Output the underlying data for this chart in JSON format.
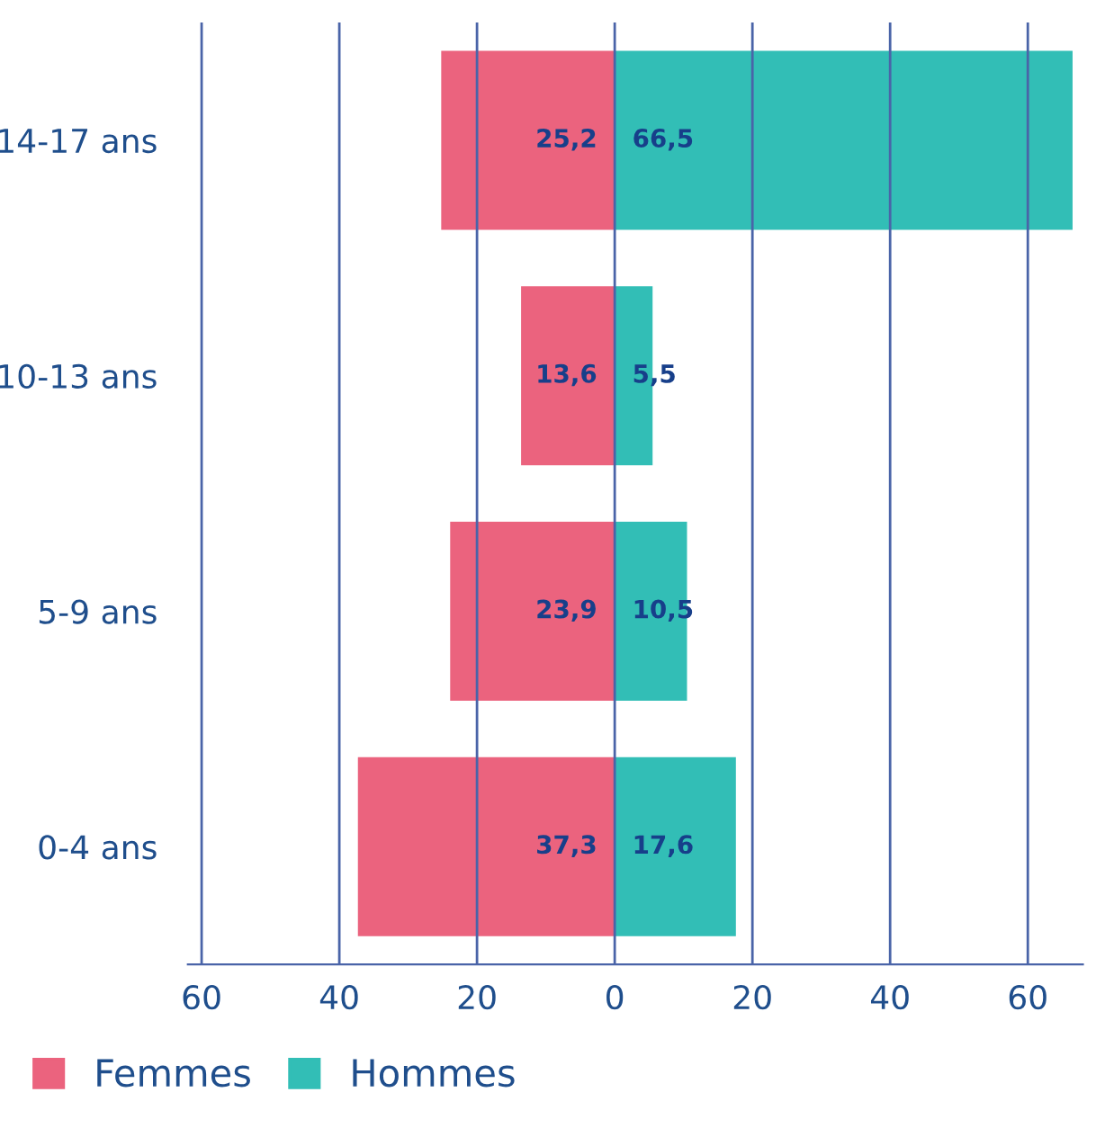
{
  "chart_data": {
    "type": "bar",
    "orientation": "horizontal",
    "categories": [
      "14-17 ans",
      "10-13 ans",
      "5-9 ans",
      "0-4 ans"
    ],
    "series": [
      {
        "name": "Femmes",
        "color": "#eb637e",
        "values": [
          25.2,
          13.6,
          23.9,
          37.3
        ],
        "base": [
          -25.2,
          -13.6,
          -23.9,
          -37.3
        ],
        "value_labels": [
          "25,2",
          "13,6",
          "23,9",
          "37,3"
        ]
      },
      {
        "name": "Hommes",
        "color": "#32beb6",
        "values": [
          66.5,
          5.5,
          10.5,
          17.6
        ],
        "value_labels": [
          "66,5",
          "5,5",
          "10,5",
          "17,6"
        ]
      }
    ],
    "xlim": [
      -62,
      68
    ],
    "xticks": [
      {
        "value": -60,
        "label": "60"
      },
      {
        "value": -40,
        "label": "40"
      },
      {
        "value": -20,
        "label": "20"
      },
      0,
      20,
      40,
      60
    ],
    "grid": "x",
    "legend": "bottom left"
  }
}
